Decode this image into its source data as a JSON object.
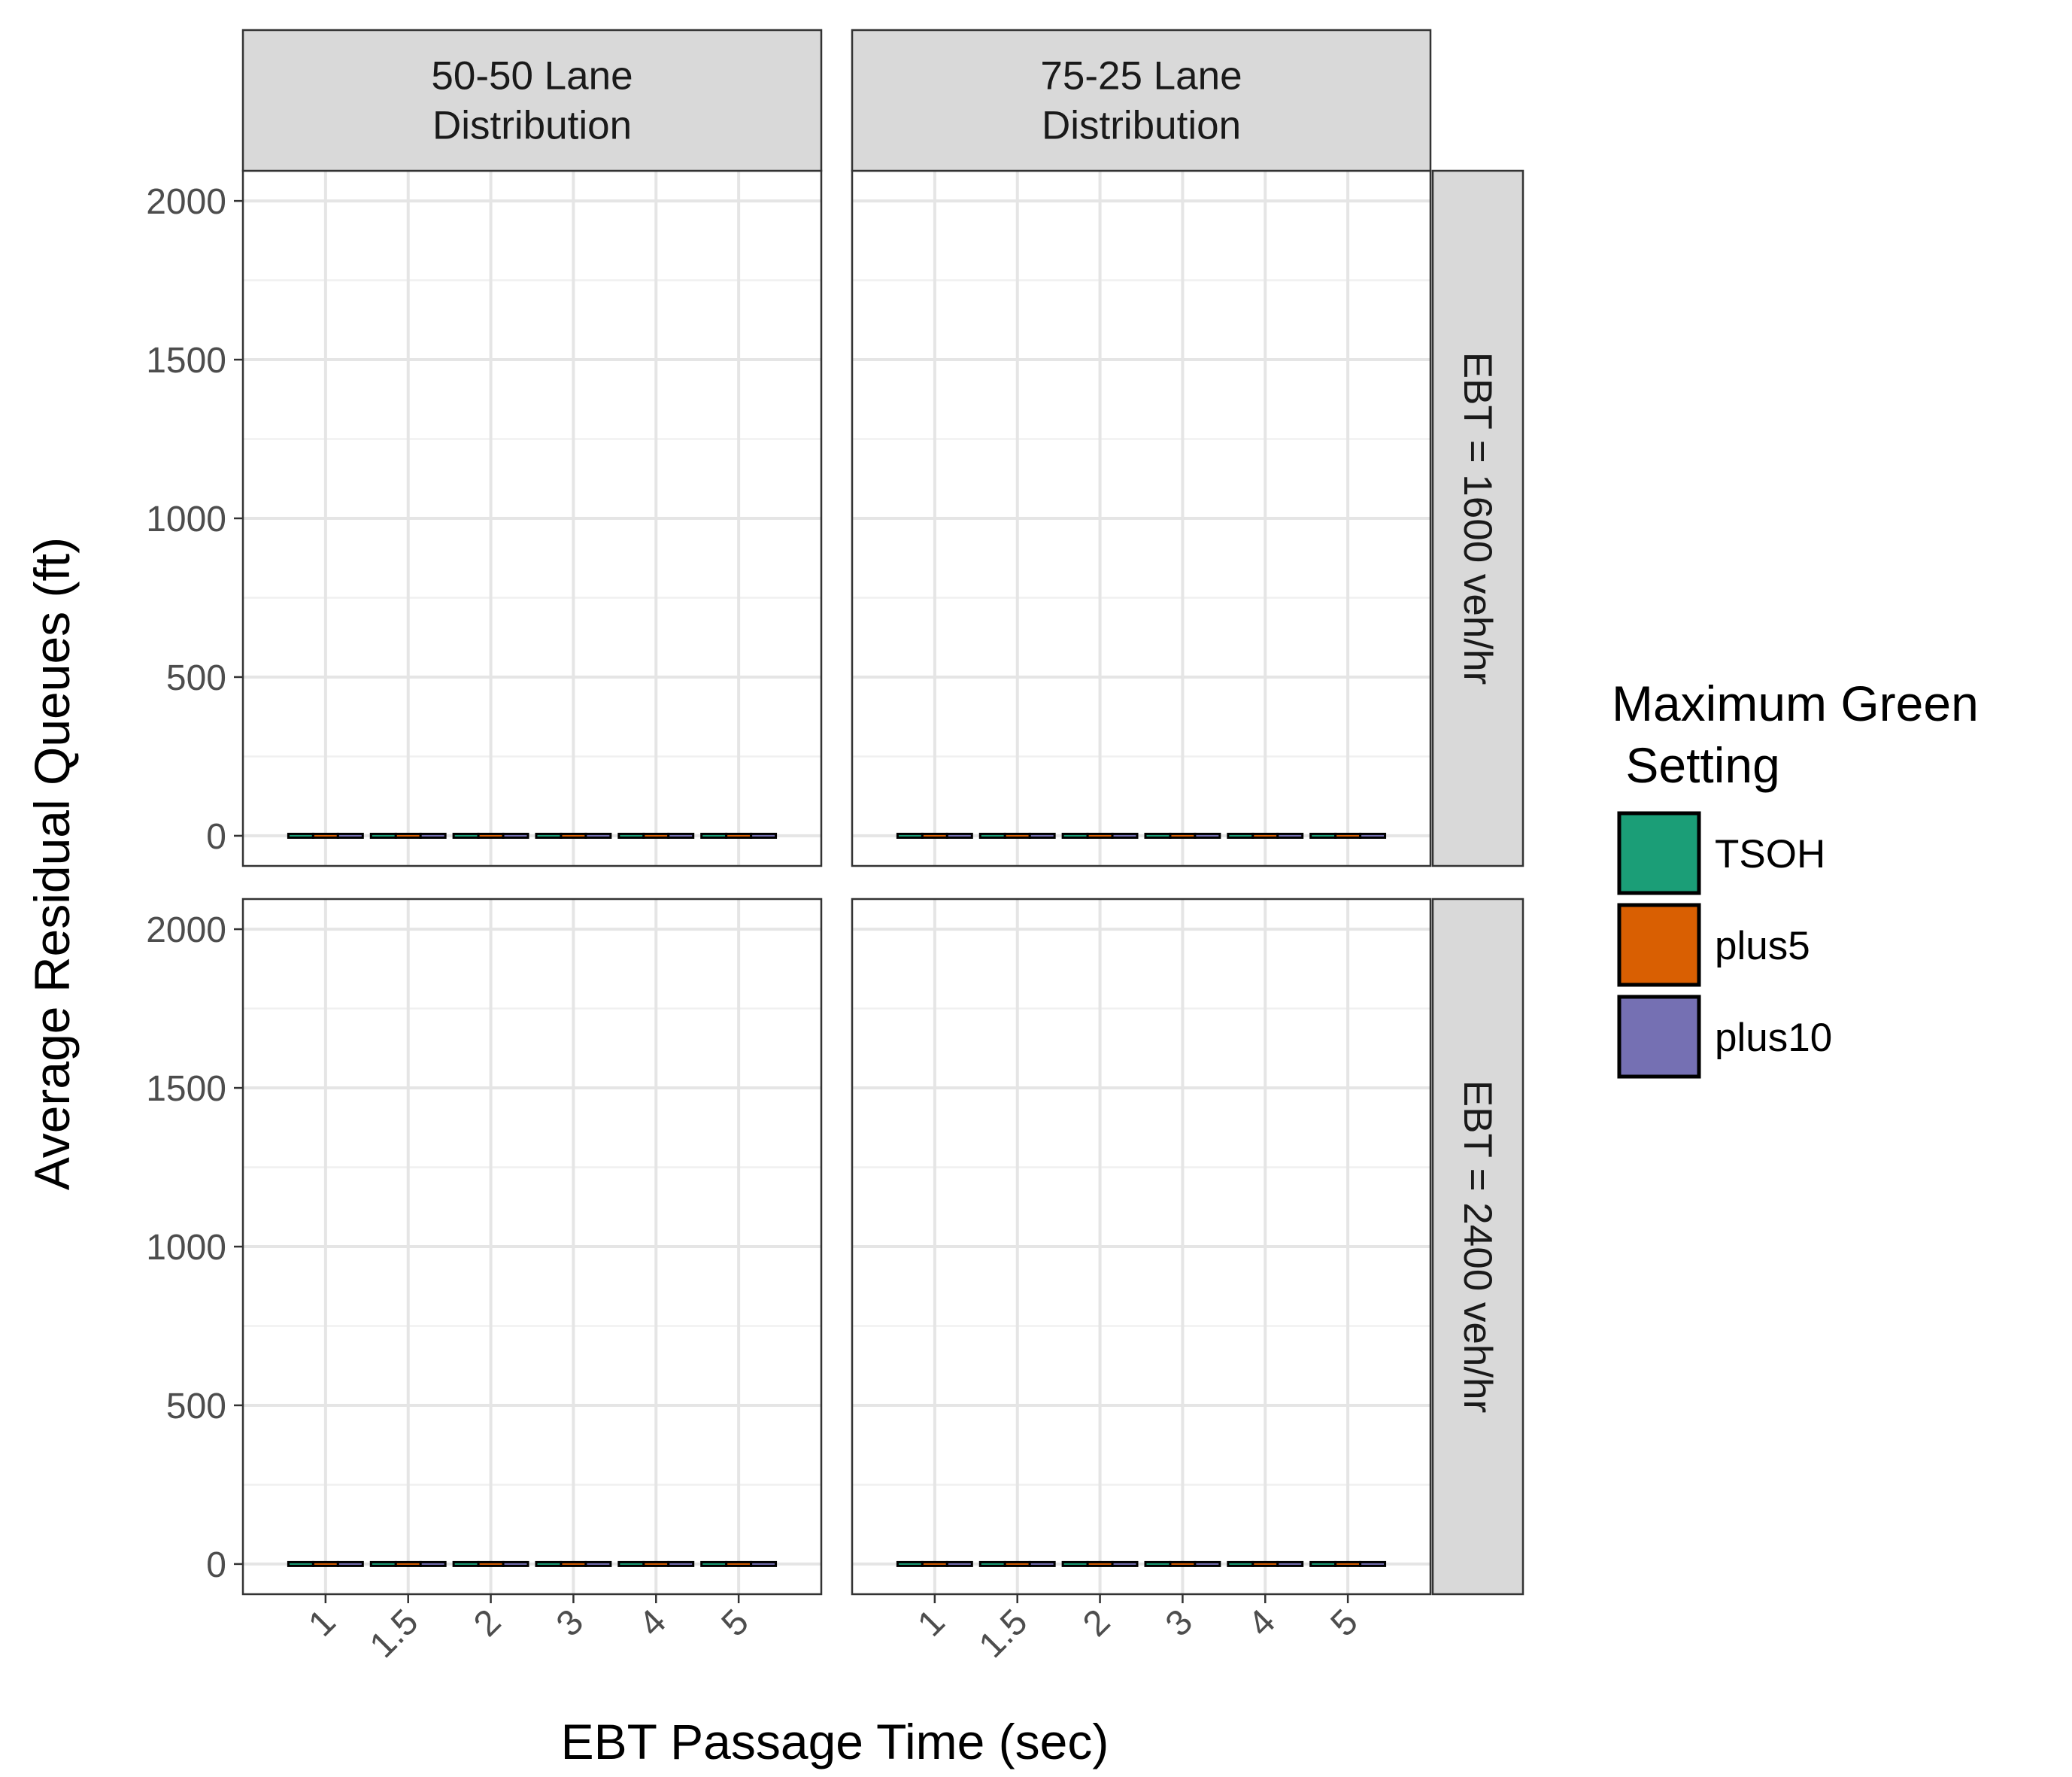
{
  "chart_data": {
    "type": "boxplot",
    "xlabel": "EBT Passage Time (sec)",
    "ylabel": "Average Residual Queues (ft)",
    "ylim": [
      -95,
      2095
    ],
    "y_ticks": [
      0,
      500,
      1000,
      1500,
      2000
    ],
    "y_tick_labels": [
      "0",
      "500",
      "1000",
      "1500",
      "2000"
    ],
    "categories": [
      "1",
      "1.5",
      "2",
      "3",
      "4",
      "5"
    ],
    "grid": true,
    "facet_columns": [
      "50-50 Lane\nDistribution",
      "75-25 Lane\nDistribution"
    ],
    "facet_rows": [
      "EBT = 1600 veh/hr",
      "EBT = 2400 veh/hr"
    ],
    "legend": {
      "title": "Maximum Green\n Setting",
      "position": "right",
      "entries": [
        {
          "name": "TSOH",
          "color": "#1b9e77"
        },
        {
          "name": "plus5",
          "color": "#d95f02"
        },
        {
          "name": "plus10",
          "color": "#7570b3"
        }
      ]
    },
    "series": [
      {
        "name": "TSOH",
        "color": "#1b9e77",
        "panels": [
          {
            "column": "50-50 Lane\nDistribution",
            "row": "EBT = 1600 veh/hr",
            "values": [
              0,
              0,
              0,
              0,
              0,
              0
            ]
          },
          {
            "column": "75-25 Lane\nDistribution",
            "row": "EBT = 1600 veh/hr",
            "values": [
              0,
              0,
              0,
              0,
              0,
              0
            ]
          },
          {
            "column": "50-50 Lane\nDistribution",
            "row": "EBT = 2400 veh/hr",
            "values": [
              0,
              0,
              0,
              0,
              0,
              0
            ]
          },
          {
            "column": "75-25 Lane\nDistribution",
            "row": "EBT = 2400 veh/hr",
            "values": [
              0,
              0,
              0,
              0,
              0,
              0
            ]
          }
        ]
      },
      {
        "name": "plus5",
        "color": "#d95f02",
        "panels": [
          {
            "column": "50-50 Lane\nDistribution",
            "row": "EBT = 1600 veh/hr",
            "values": [
              0,
              0,
              0,
              0,
              0,
              0
            ]
          },
          {
            "column": "75-25 Lane\nDistribution",
            "row": "EBT = 1600 veh/hr",
            "values": [
              0,
              0,
              0,
              0,
              0,
              0
            ]
          },
          {
            "column": "50-50 Lane\nDistribution",
            "row": "EBT = 2400 veh/hr",
            "values": [
              0,
              0,
              0,
              0,
              0,
              0
            ]
          },
          {
            "column": "75-25 Lane\nDistribution",
            "row": "EBT = 2400 veh/hr",
            "values": [
              0,
              0,
              0,
              0,
              0,
              0
            ]
          }
        ]
      },
      {
        "name": "plus10",
        "color": "#7570b3",
        "panels": [
          {
            "column": "50-50 Lane\nDistribution",
            "row": "EBT = 1600 veh/hr",
            "values": [
              0,
              0,
              0,
              0,
              0,
              0
            ]
          },
          {
            "column": "75-25 Lane\nDistribution",
            "row": "EBT = 1600 veh/hr",
            "values": [
              0,
              0,
              0,
              0,
              0,
              0
            ]
          },
          {
            "column": "50-50 Lane\nDistribution",
            "row": "EBT = 2400 veh/hr",
            "values": [
              0,
              0,
              0,
              0,
              0,
              0
            ]
          },
          {
            "column": "75-25 Lane\nDistribution",
            "row": "EBT = 2400 veh/hr",
            "values": [
              0,
              0,
              0,
              0,
              0,
              0
            ]
          }
        ]
      }
    ]
  }
}
